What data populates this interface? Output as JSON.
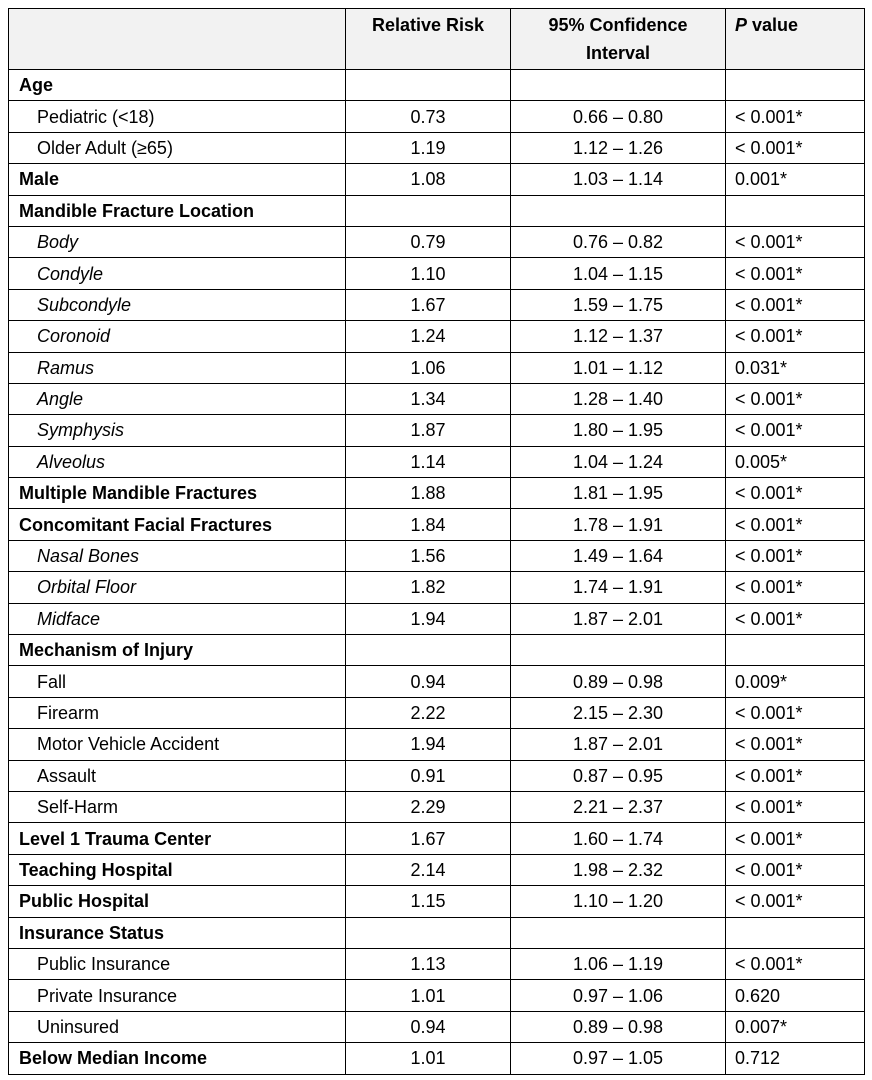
{
  "table": {
    "header": {
      "col2": "Relative Risk",
      "col3": "95% Confidence Interval",
      "col4": {
        "italic": "P",
        "text": "value"
      }
    },
    "rows": [
      [
        "Age"
      ],
      [
        "Pediatric (<18)",
        "0.73",
        "0.66 – 0.80",
        "< 0.001*"
      ],
      [
        "Older Adult (≥65)",
        "1.19",
        "1.12 – 1.26",
        "< 0.001*"
      ],
      [
        "Male",
        "1.08",
        "1.03 – 1.14",
        "0.001*"
      ],
      [
        "Mandible Fracture Location"
      ],
      [
        "Body",
        "0.79",
        "0.76 – 0.82",
        "< 0.001*"
      ],
      [
        "Condyle",
        "1.10",
        "1.04 – 1.15",
        "< 0.001*"
      ],
      [
        "Subcondyle",
        "1.67",
        "1.59 – 1.75",
        "< 0.001*"
      ],
      [
        "Coronoid",
        "1.24",
        "1.12 – 1.37",
        "< 0.001*"
      ],
      [
        "Ramus",
        "1.06",
        "1.01 – 1.12",
        "0.031*"
      ],
      [
        "Angle",
        "1.34",
        "1.28 – 1.40",
        "< 0.001*"
      ],
      [
        "Symphysis",
        "1.87",
        "1.80 – 1.95",
        "< 0.001*"
      ],
      [
        "Alveolus",
        "1.14",
        "1.04 – 1.24",
        "0.005*"
      ],
      [
        "Multiple Mandible Fractures",
        "1.88",
        "1.81 – 1.95",
        "< 0.001*"
      ],
      [
        "Concomitant Facial Fractures",
        "1.84",
        "1.78 – 1.91",
        "< 0.001*"
      ],
      [
        "Nasal Bones",
        "1.56",
        "1.49 – 1.64",
        "< 0.001*"
      ],
      [
        "Orbital Floor",
        "1.82",
        "1.74 – 1.91",
        "< 0.001*"
      ],
      [
        "Midface",
        "1.94",
        "1.87 – 2.01",
        "< 0.001*"
      ],
      [
        "Mechanism of Injury"
      ],
      [
        "Fall",
        "0.94",
        "0.89 – 0.98",
        "0.009*"
      ],
      [
        "Firearm",
        "2.22",
        "2.15 – 2.30",
        "< 0.001*"
      ],
      [
        "Motor Vehicle Accident",
        "1.94",
        "1.87 – 2.01",
        "< 0.001*"
      ],
      [
        "Assault",
        "0.91",
        "0.87 – 0.95",
        "< 0.001*"
      ],
      [
        "Self-Harm",
        "2.29",
        "2.21 – 2.37",
        "< 0.001*"
      ],
      [
        "Level 1 Trauma Center",
        "1.67",
        "1.60 – 1.74",
        "< 0.001*"
      ],
      [
        "Teaching Hospital",
        "2.14",
        "1.98 – 2.32",
        "< 0.001*"
      ],
      [
        "Public Hospital",
        "1.15",
        "1.10 – 1.20",
        "< 0.001*"
      ],
      [
        "Insurance Status"
      ],
      [
        "Public Insurance",
        "1.13",
        "1.06 – 1.19",
        "< 0.001*"
      ],
      [
        "Private Insurance",
        "1.01",
        "0.97 – 1.06",
        "0.620"
      ],
      [
        "Uninsured",
        "0.94",
        "0.89 – 0.98",
        "0.007*"
      ],
      [
        "Below Median Income",
        "1.01",
        "0.97 – 1.05",
        "0.712"
      ]
    ]
  }
}
